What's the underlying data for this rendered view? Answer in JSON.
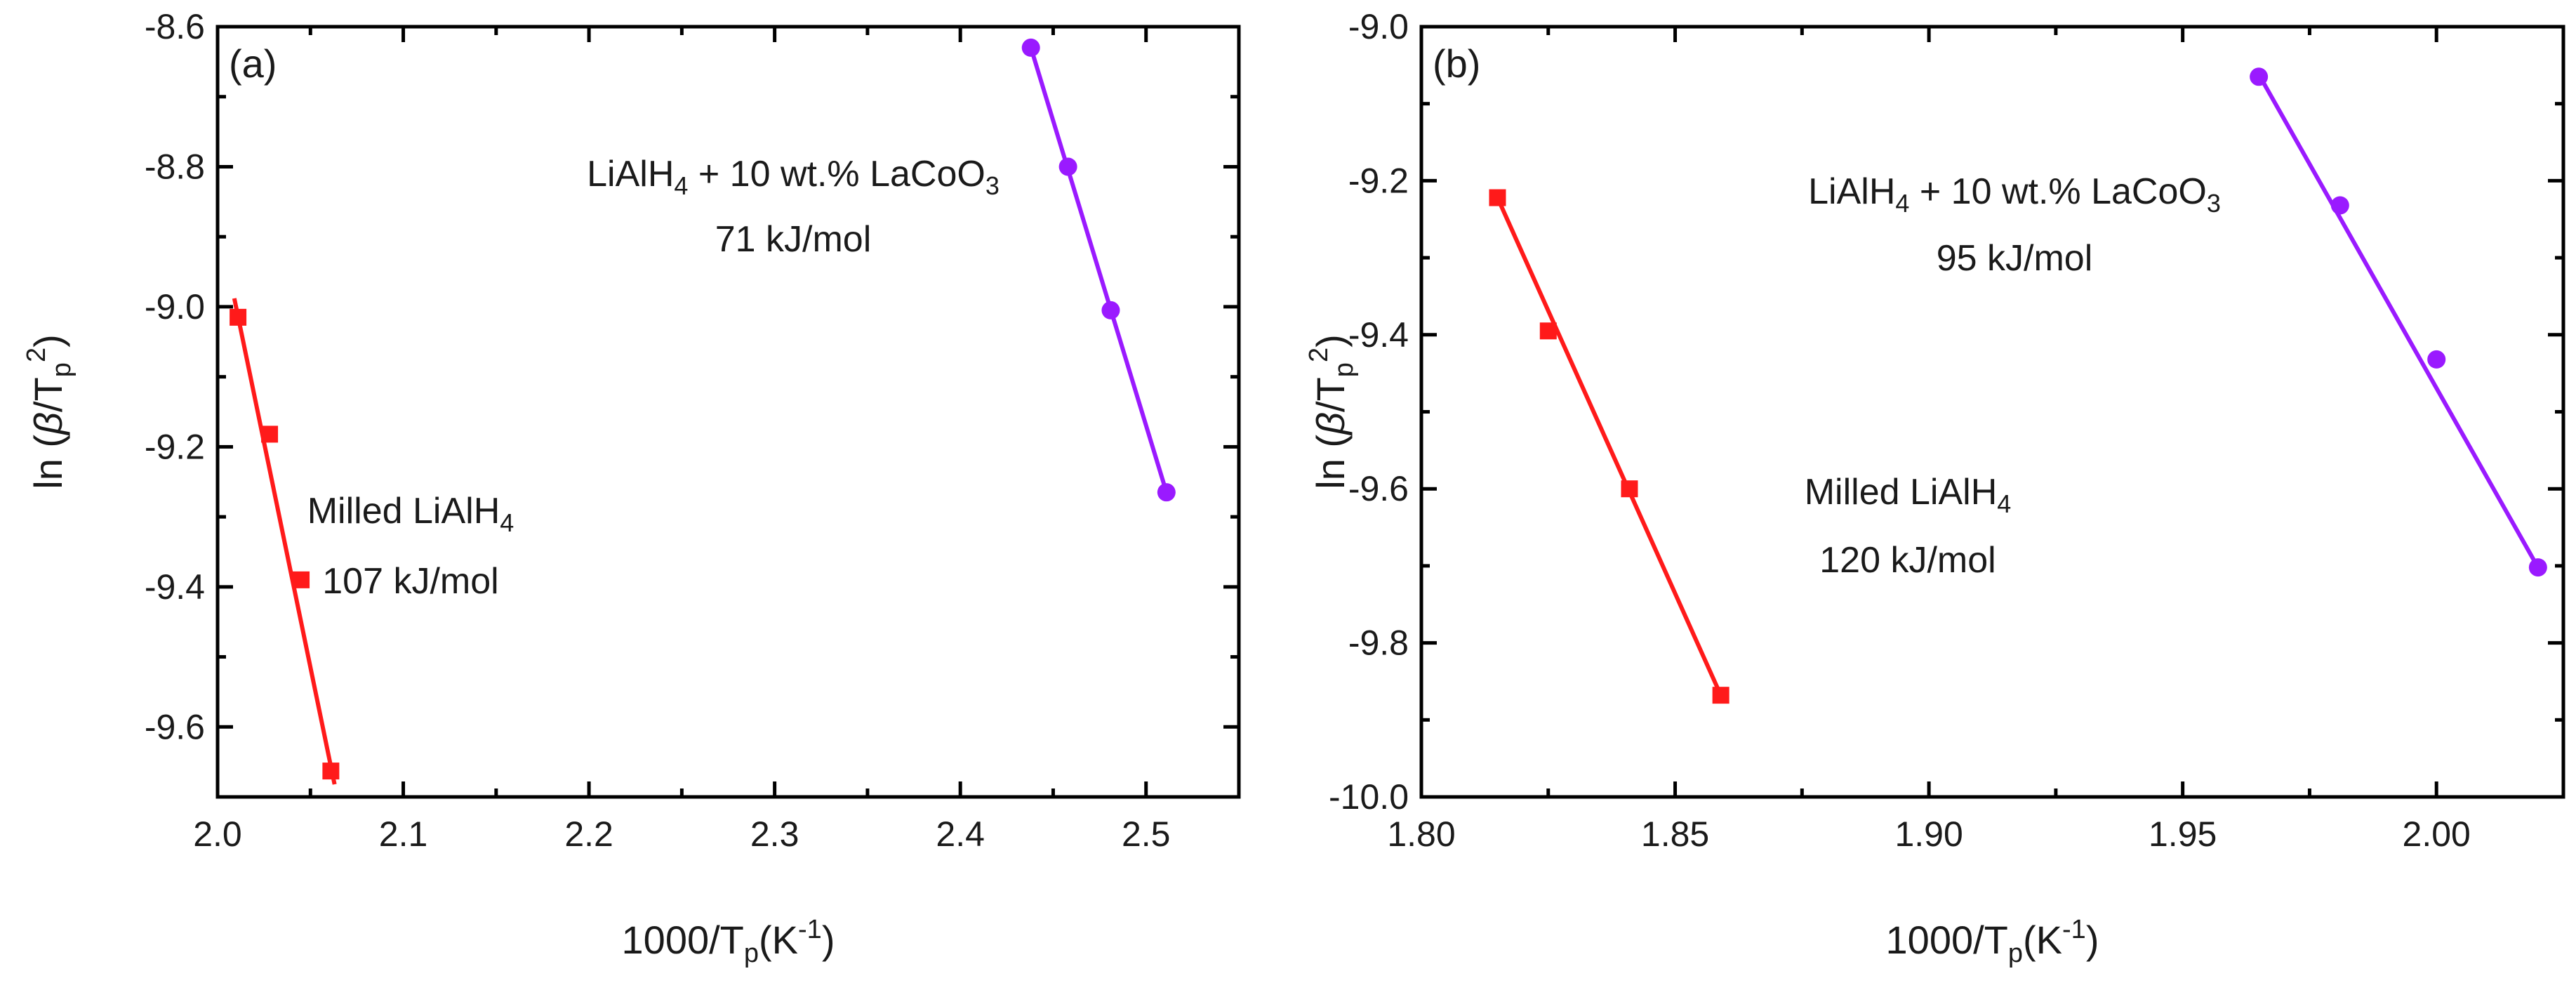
{
  "chart_data": [
    {
      "type": "scatter",
      "panel_label": "(a)",
      "xlabel": "1000/Tp(K-1)",
      "ylabel": "ln (β/Tp2)",
      "xlim": [
        2.0,
        2.55
      ],
      "ylim": [
        -9.7,
        -8.6
      ],
      "xticks": [
        "2.0",
        "2.1",
        "2.2",
        "2.3",
        "2.4",
        "2.5"
      ],
      "yticks": [
        "-9.6",
        "-9.4",
        "-9.2",
        "-9.0",
        "-8.8",
        "-8.6"
      ],
      "series": [
        {
          "name": "Milled LiAlH4",
          "marker": "square",
          "color": "#ff1a1a",
          "x": [
            2.011,
            2.028,
            2.045,
            2.061
          ],
          "y": [
            -9.015,
            -9.182,
            -9.39,
            -9.663
          ],
          "fit_x": [
            2.009,
            2.063
          ],
          "fit_y": [
            -8.988,
            -9.682
          ],
          "annotation": {
            "name": "Milled LiAlH",
            "sub": "4",
            "energy": "107 kJ/mol"
          }
        },
        {
          "name": "LiAlH4 + 10 wt.% LaCoO3",
          "marker": "circle",
          "color": "#9a1aff",
          "x": [
            2.438,
            2.458,
            2.481,
            2.511
          ],
          "y": [
            -8.63,
            -8.8,
            -9.005,
            -9.265
          ],
          "fit_x": [
            2.438,
            2.511
          ],
          "fit_y": [
            -8.63,
            -9.265
          ],
          "annotation": {
            "pre": "LiAlH",
            "sub1": "4",
            "mid": " + 10 wt.% LaCoO",
            "sub2": "3",
            "energy": "71 kJ/mol"
          }
        }
      ]
    },
    {
      "type": "scatter",
      "panel_label": "(b)",
      "xlabel": "1000/Tp(K-1)",
      "ylabel": "ln (β/Tp2)",
      "xlim": [
        1.8,
        2.025
      ],
      "ylim": [
        -10.0,
        -9.0
      ],
      "xticks": [
        "1.80",
        "1.85",
        "1.90",
        "1.95",
        "2.00"
      ],
      "yticks": [
        "-10.0",
        "-9.8",
        "-9.6",
        "-9.4",
        "-9.2",
        "-9.0"
      ],
      "series": [
        {
          "name": "Milled LiAlH4",
          "marker": "square",
          "color": "#ff1a1a",
          "x": [
            1.815,
            1.825,
            1.841,
            1.859
          ],
          "y": [
            -9.222,
            -9.395,
            -9.6,
            -9.868
          ],
          "fit_x": [
            1.815,
            1.859
          ],
          "fit_y": [
            -9.222,
            -9.868
          ],
          "annotation": {
            "name": "Milled LiAlH",
            "sub": "4",
            "energy": "120 kJ/mol"
          }
        },
        {
          "name": "LiAlH4 + 10 wt.% LaCoO3",
          "marker": "circle",
          "color": "#9a1aff",
          "x": [
            1.965,
            1.981,
            2.0,
            2.02
          ],
          "y": [
            -9.065,
            -9.232,
            -9.432,
            -9.702
          ],
          "fit_x": [
            1.965,
            2.02
          ],
          "fit_y": [
            -9.062,
            -9.702
          ],
          "annotation": {
            "pre": "LiAlH",
            "sub1": "4",
            "mid": " + 10 wt.% LaCoO",
            "sub2": "3",
            "energy": "95 kJ/mol"
          }
        }
      ]
    }
  ]
}
